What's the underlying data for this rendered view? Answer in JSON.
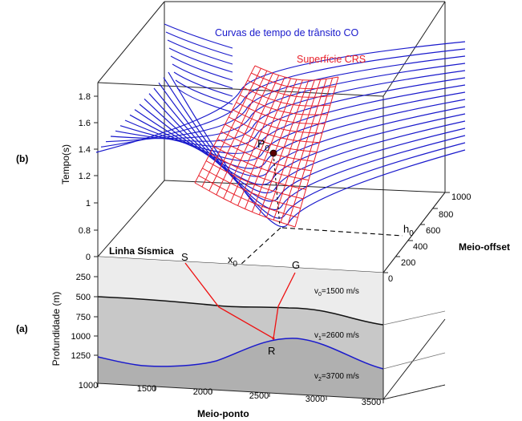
{
  "panels": {
    "b": "(b)",
    "a": "(a)"
  },
  "labels": {
    "co_curves": "Curvas de tempo de trânsito CO",
    "crs_surface": "Superfície CRS",
    "seismic_line": "Linha Sísmica",
    "p0_main": "P",
    "p0_sub": "0",
    "x0_main": "x",
    "x0_sub": "0",
    "h0_main": "h",
    "h0_sub": "0",
    "source": "S",
    "receiver": "G",
    "reflection": "R",
    "time_axis": "Tempo(s)",
    "depth_axis": "Profundidade (m)",
    "midpoint_axis": "Meio-ponto",
    "offset_axis": "Meio-offset"
  },
  "layers": [
    {
      "main": "v",
      "sub": "0",
      "value": "=1500 m/s"
    },
    {
      "main": "v",
      "sub": "1",
      "value": "=2600 m/s"
    },
    {
      "main": "v",
      "sub": "2",
      "value": "=3700 m/s"
    }
  ],
  "ticks": {
    "time": [
      "1.8",
      "1.6",
      "1.4",
      "1.2",
      "1",
      "0.8",
      "0"
    ],
    "depth": [
      "250",
      "500",
      "750",
      "1000",
      "1250"
    ],
    "midpoint": [
      "1000",
      "1500",
      "2000",
      "2500",
      "3000",
      "3500"
    ],
    "offset": [
      "0",
      "200",
      "400",
      "600",
      "800",
      "1000"
    ]
  },
  "colors": {
    "co_curves": "#1a1acc",
    "crs_surface": "#e8202a",
    "ray": "#ee1111",
    "layer0": "#ececec",
    "layer1": "#c8c8c8",
    "layer2": "#b0b0b0",
    "interface2": "#1a1acc"
  }
}
